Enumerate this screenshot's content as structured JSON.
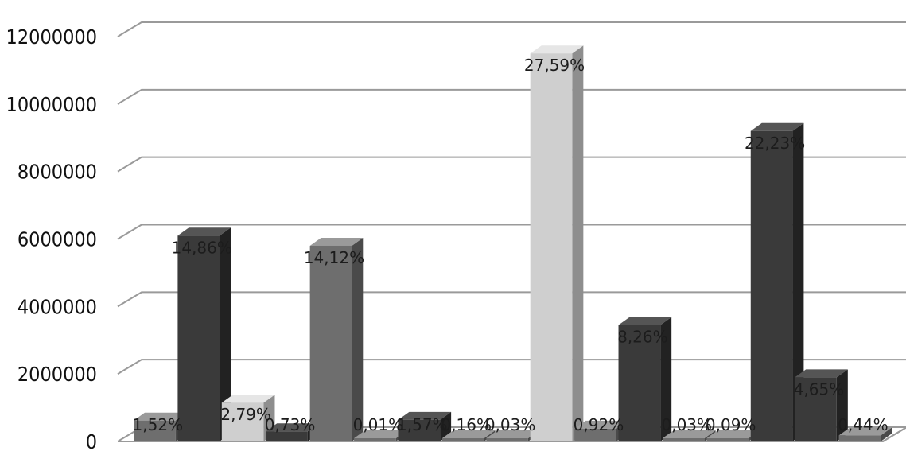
{
  "chart_data": {
    "type": "bar",
    "title": "",
    "xlabel": "",
    "ylabel": "",
    "ylim": [
      0,
      12000000
    ],
    "yticks": [
      "0",
      "2000000",
      "4000000",
      "6000000",
      "8000000",
      "10000000",
      "12000000"
    ],
    "grid": true,
    "legend": "none",
    "bars": [
      {
        "value": 620000,
        "label": "1,52%",
        "shade": "gray"
      },
      {
        "value": 6100000,
        "label": "14,86%",
        "shade": "dark"
      },
      {
        "value": 1150000,
        "label": "2,79%",
        "shade": "light"
      },
      {
        "value": 300000,
        "label": "0,73%",
        "shade": "dark"
      },
      {
        "value": 5800000,
        "label": "14,12%",
        "shade": "gray"
      },
      {
        "value": 4000,
        "label": "0,01%",
        "shade": "gray"
      },
      {
        "value": 640000,
        "label": "1,57%",
        "shade": "dark"
      },
      {
        "value": 65000,
        "label": "0,16%",
        "shade": "gray"
      },
      {
        "value": 12000,
        "label": "0,03%",
        "shade": "gray"
      },
      {
        "value": 11500000,
        "label": "27,59%",
        "shade": "light"
      },
      {
        "value": 380000,
        "label": "0,92%",
        "shade": "gray"
      },
      {
        "value": 3450000,
        "label": "8,26%",
        "shade": "dark"
      },
      {
        "value": 12000,
        "label": "0,03%",
        "shade": "gray"
      },
      {
        "value": 37000,
        "label": "0,09%",
        "shade": "gray"
      },
      {
        "value": 9200000,
        "label": "22,23%",
        "shade": "dark"
      },
      {
        "value": 1900000,
        "label": "4,65%",
        "shade": "dark"
      },
      {
        "value": 180000,
        "label": "0,44%",
        "shade": "gray"
      }
    ]
  },
  "colors": {
    "background": "#ffffff",
    "grid": "#9a9a9a",
    "gray": {
      "front": "#6e6e6e",
      "side": "#4a4a4a",
      "top": "#9a9a9a"
    },
    "dark": {
      "front": "#3a3a3a",
      "side": "#222222",
      "top": "#555555"
    },
    "light": {
      "front": "#cfcfcf",
      "side": "#8e8e8e",
      "top": "#e6e6e6"
    }
  }
}
